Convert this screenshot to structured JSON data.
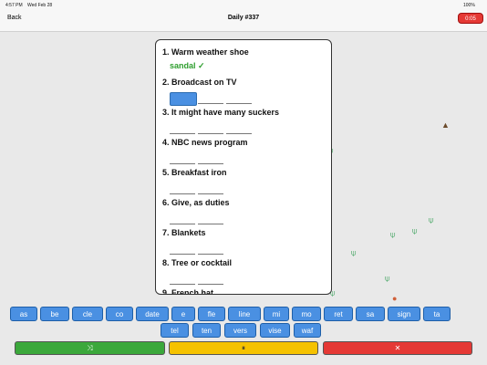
{
  "status_bar": {
    "time": "4:57 PM",
    "date": "Wed Feb 28",
    "battery": "100%"
  },
  "nav": {
    "back": "Back",
    "title": "Daily #337",
    "timer": "0:05"
  },
  "clues": [
    {
      "label": "1. Warm weather shoe",
      "answer": "sandal ✓"
    },
    {
      "label": "2. Broadcast on TV"
    },
    {
      "label": "3. It might have many suckers"
    },
    {
      "label": "4. NBC news program"
    },
    {
      "label": "5. Breakfast iron"
    },
    {
      "label": "6. Give, as duties"
    },
    {
      "label": "7. Blankets"
    },
    {
      "label": "8. Tree or cocktail"
    },
    {
      "label": "9. French hat"
    }
  ],
  "tiles_row1": [
    "as",
    "be",
    "cle",
    "co",
    "date",
    "e",
    "fle",
    "line",
    "mi",
    "mo",
    "ret",
    "sa",
    "sign",
    "ta"
  ],
  "tiles_row2": [
    "tel",
    "ten",
    "vers",
    "vise",
    "waf"
  ],
  "buttons": {
    "shuffle": "⤨",
    "pause": "⏸",
    "clear": "✕"
  }
}
